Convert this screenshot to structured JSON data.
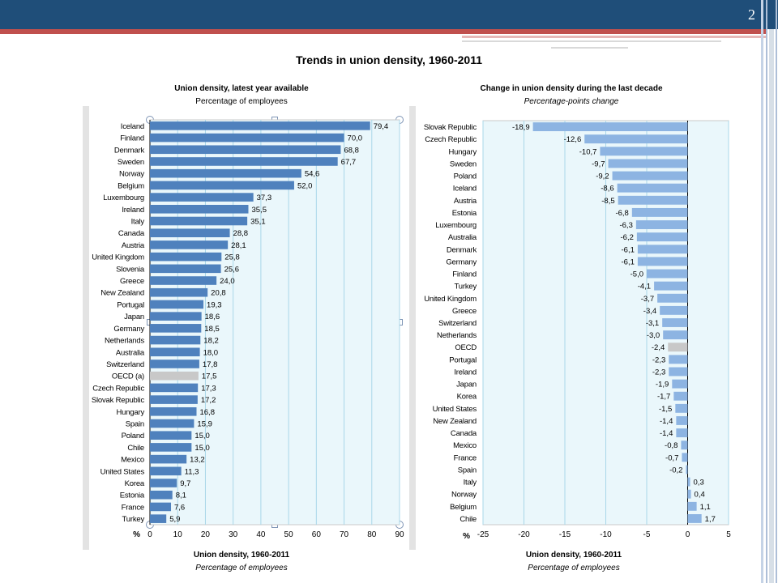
{
  "slide": {
    "number": "2",
    "title": "Trends in  union density, 1960-2011"
  },
  "colors": {
    "bar": "#4f81bd",
    "bar_right": "#8db4e2",
    "oecd": "#c8c8c8",
    "plot_bg": "#eaf7fb",
    "grid": "#a9d7e8",
    "header": "#1f4e79",
    "accent": "#c0504d"
  },
  "chart_data": [
    {
      "type": "bar",
      "orientation": "horizontal",
      "title": "Union density, latest year available",
      "subtitle": "Percentage of employees",
      "footer_title": "Union density, 1960-2011",
      "footer_subtitle": "Percentage of employees",
      "unit_label": "%",
      "xlim": [
        0,
        90
      ],
      "ticks": [
        "0",
        "10",
        "20",
        "30",
        "40",
        "50",
        "60",
        "70",
        "80",
        "90"
      ],
      "grid": true,
      "categories": [
        "Iceland",
        "Finland",
        "Denmark",
        "Sweden",
        "Norway",
        "Belgium",
        "Luxembourg",
        "Ireland",
        "Italy",
        "Canada",
        "Austria",
        "United Kingdom",
        "Slovenia",
        "Greece",
        "New Zealand",
        "Portugal",
        "Japan",
        "Germany",
        "Netherlands",
        "Australia",
        "Switzerland",
        "OECD (a)",
        "Czech Republic",
        "Slovak Republic",
        "Hungary",
        "Spain",
        "Poland",
        "Chile",
        "Mexico",
        "United States",
        "Korea",
        "Estonia",
        "France",
        "Turkey"
      ],
      "values": [
        79.4,
        70.0,
        68.8,
        67.7,
        54.6,
        52.0,
        37.3,
        35.5,
        35.1,
        28.8,
        28.1,
        25.8,
        25.6,
        24.0,
        20.8,
        19.3,
        18.6,
        18.5,
        18.2,
        18.0,
        17.8,
        17.5,
        17.3,
        17.2,
        16.8,
        15.9,
        15.0,
        15.0,
        13.2,
        11.3,
        9.7,
        8.1,
        7.6,
        5.9
      ],
      "value_labels": [
        "79,4",
        "70,0",
        "68,8",
        "67,7",
        "54,6",
        "52,0",
        "37,3",
        "35,5",
        "35,1",
        "28,8",
        "28,1",
        "25,8",
        "25,6",
        "24,0",
        "20,8",
        "19,3",
        "18,6",
        "18,5",
        "18,2",
        "18,0",
        "17,8",
        "17,5",
        "17,3",
        "17,2",
        "16,8",
        "15,9",
        "15,0",
        "15,0",
        "13,2",
        "11,3",
        "9,7",
        "8,1",
        "7,6",
        "5,9"
      ],
      "highlight": "OECD (a)"
    },
    {
      "type": "bar",
      "orientation": "horizontal",
      "title": "Change in union density during the last decade",
      "subtitle": "Percentage-points change",
      "footer_title": "Union density, 1960-2011",
      "footer_subtitle": "Percentage of employees",
      "unit_label": "%",
      "xlim": [
        -25,
        5
      ],
      "ticks": [
        "-25",
        "-20",
        "-15",
        "-10",
        "-5",
        "0",
        "5"
      ],
      "grid": true,
      "categories": [
        "Slovak Republic",
        "Czech Republic",
        "Hungary",
        "Sweden",
        "Poland",
        "Iceland",
        "Austria",
        "Estonia",
        "Luxembourg",
        "Australia",
        "Denmark",
        "Germany",
        "Finland",
        "Turkey",
        "United Kingdom",
        "Greece",
        "Switzerland",
        "Netherlands",
        "OECD",
        "Portugal",
        "Ireland",
        "Japan",
        "Korea",
        "United States",
        "New Zealand",
        "Canada",
        "Mexico",
        "France",
        "Spain",
        "Italy",
        "Norway",
        "Belgium",
        "Chile"
      ],
      "values": [
        -18.9,
        -12.6,
        -10.7,
        -9.7,
        -9.2,
        -8.6,
        -8.5,
        -6.8,
        -6.3,
        -6.2,
        -6.1,
        -6.1,
        -5.0,
        -4.1,
        -3.7,
        -3.4,
        -3.1,
        -3.0,
        -2.4,
        -2.3,
        -2.3,
        -1.9,
        -1.7,
        -1.5,
        -1.4,
        -1.4,
        -0.8,
        -0.7,
        -0.2,
        0.3,
        0.4,
        1.1,
        1.7
      ],
      "value_labels": [
        "-18,9",
        "-12,6",
        "-10,7",
        "-9,7",
        "-9,2",
        "-8,6",
        "-8,5",
        "-6,8",
        "-6,3",
        "-6,2",
        "-6,1",
        "-6,1",
        "-5,0",
        "-4,1",
        "-3,7",
        "-3,4",
        "-3,1",
        "-3,0",
        "-2,4",
        "-2,3",
        "-2,3",
        "-1,9",
        "-1,7",
        "-1,5",
        "-1,4",
        "-1,4",
        "-0,8",
        "-0,7",
        "-0,2",
        "0,3",
        "0,4",
        "1,1",
        "1,7"
      ],
      "highlight": "OECD"
    }
  ]
}
